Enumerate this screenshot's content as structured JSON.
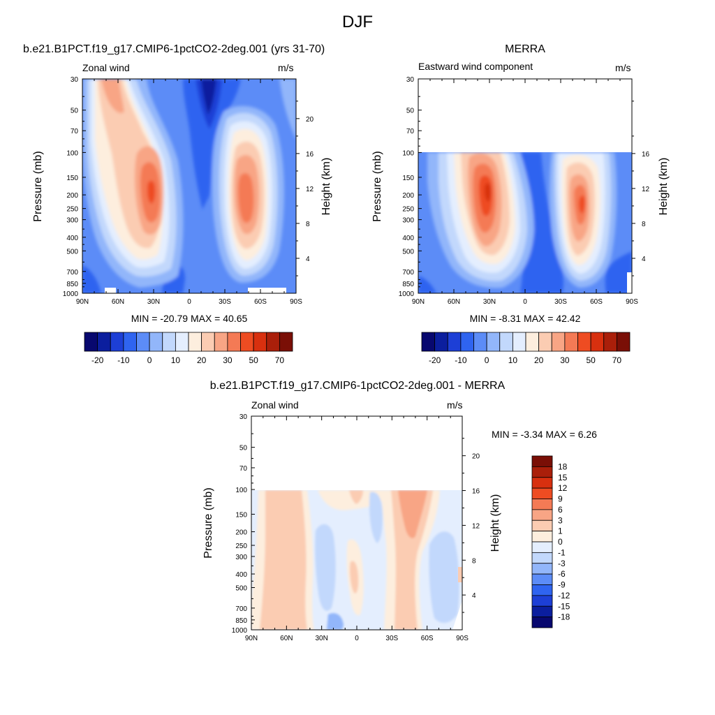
{
  "figure_title": "DJF",
  "panels": [
    {
      "title": "b.e21.B1PCT.f19_g17.CMIP6-1pctCO2-2deg.001 (yrs 31-70)",
      "left_string": "Zonal wind",
      "right_string": "m/s",
      "ylabel": "Pressure (mb)",
      "ylabel_right": "Height (km)",
      "stats": "MIN = -20.79  MAX =  40.65"
    },
    {
      "title": "MERRA",
      "left_string": "Eastward wind component",
      "right_string": "m/s",
      "ylabel": "Pressure (mb)",
      "ylabel_right": "Height (km)",
      "stats": "MIN =  -8.31  MAX =  42.42"
    },
    {
      "title": "b.e21.B1PCT.f19_g17.CMIP6-1pctCO2-2deg.001 - MERRA",
      "left_string": "Zonal wind",
      "right_string": "m/s",
      "ylabel": "Pressure (mb)",
      "ylabel_right": "Height (km)",
      "stats": "MIN =  -3.34  MAX =   6.26"
    }
  ],
  "chart_data": [
    {
      "type": "heatmap",
      "title": "b.e21.B1PCT.f19_g17.CMIP6-1pctCO2-2deg.001 (yrs 31-70)",
      "variable": "Zonal wind",
      "units": "m/s",
      "x_ticks": [
        "90N",
        "60N",
        "30N",
        "0",
        "30S",
        "60S",
        "90S"
      ],
      "y_ticks": [
        30,
        50,
        70,
        100,
        150,
        200,
        250,
        300,
        400,
        500,
        700,
        850,
        1000
      ],
      "y_right_ticks": [
        4,
        8,
        12,
        16,
        20
      ],
      "xlabel": "",
      "ylabel": "Pressure (mb)",
      "ylabel_right": "Height (km)",
      "min": -20.79,
      "max": 40.65,
      "colorbar_labels": [
        "-20",
        "-10",
        "0",
        "10",
        "20",
        "30",
        "50",
        "70"
      ],
      "jets": [
        {
          "lat": 28,
          "p": 200,
          "max": 40
        },
        {
          "lat": -47,
          "p": 200,
          "max": 40
        }
      ]
    },
    {
      "type": "heatmap",
      "title": "MERRA",
      "variable": "Eastward wind component",
      "units": "m/s",
      "x_ticks": [
        "90N",
        "60N",
        "30N",
        "0",
        "30S",
        "60S",
        "90S"
      ],
      "y_ticks": [
        30,
        50,
        70,
        100,
        150,
        200,
        250,
        300,
        400,
        500,
        700,
        850,
        1000
      ],
      "y_right_ticks": [
        4,
        8,
        12,
        16
      ],
      "xlabel": "",
      "ylabel": "Pressure (mb)",
      "ylabel_right": "Height (km)",
      "min": -8.31,
      "max": 42.42,
      "colorbar_labels": [
        "-20",
        "-10",
        "0",
        "10",
        "20",
        "30",
        "50",
        "70"
      ],
      "jets": [
        {
          "lat": 30,
          "p": 200,
          "max": 42
        },
        {
          "lat": -47,
          "p": 250,
          "max": 32
        }
      ]
    },
    {
      "type": "heatmap",
      "title": "b.e21.B1PCT.f19_g17.CMIP6-1pctCO2-2deg.001 - MERRA",
      "variable": "Zonal wind",
      "units": "m/s",
      "x_ticks": [
        "90N",
        "60N",
        "30N",
        "0",
        "30S",
        "60S",
        "90S"
      ],
      "y_ticks": [
        30,
        50,
        70,
        100,
        150,
        200,
        250,
        300,
        400,
        500,
        700,
        850,
        1000
      ],
      "y_right_ticks": [
        4,
        8,
        12,
        16,
        20
      ],
      "xlabel": "",
      "ylabel": "Pressure (mb)",
      "ylabel_right": "Height (km)",
      "min": -3.34,
      "max": 6.26,
      "colorbar_labels": [
        "18",
        "15",
        "12",
        "9",
        "6",
        "3",
        "1",
        "0",
        "-1",
        "-3",
        "-6",
        "-9",
        "-12",
        "-15",
        "-18"
      ]
    }
  ],
  "colors": {
    "colorbar_fills": [
      "#08086f",
      "#0b1e9e",
      "#1d3fd6",
      "#2f64f0",
      "#5c8cf7",
      "#92b6fa",
      "#c2d8fc",
      "#e4eefe",
      "#fdeede",
      "#fbccb2",
      "#f8a585",
      "#f47a55",
      "#ee4c22",
      "#d8300f",
      "#aa1f0a",
      "#7a0f06"
    ]
  }
}
